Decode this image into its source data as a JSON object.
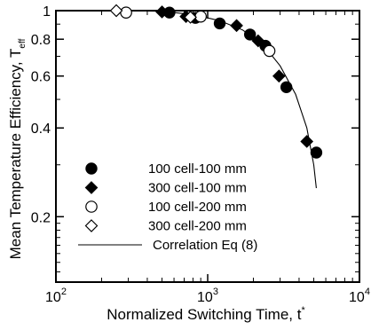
{
  "chart_data": {
    "type": "scatter",
    "xlabel": "Normalized Switching Time, t",
    "xlabel_superscript": "*",
    "ylabel": "Mean Temperature Efficiency, T",
    "ylabel_subscript": "eff",
    "x_scale": "log",
    "y_scale": "log",
    "xlim": [
      100,
      10000
    ],
    "ylim": [
      0.12,
      1.0
    ],
    "x_ticks": [
      {
        "value": 100,
        "base": "10",
        "exp": "2"
      },
      {
        "value": 1000,
        "base": "10",
        "exp": "3"
      },
      {
        "value": 10000,
        "base": "10",
        "exp": "4"
      }
    ],
    "y_ticks": [
      {
        "value": 1.0,
        "label": "1"
      },
      {
        "value": 0.8,
        "label": "0.8"
      },
      {
        "value": 0.6,
        "label": "0.6"
      },
      {
        "value": 0.4,
        "label": "0.4"
      },
      {
        "value": 0.2,
        "label": "0.2"
      }
    ],
    "grid": false,
    "legend_position": "bottom-left",
    "series": [
      {
        "name": "100 cell-100 mm",
        "marker": "filled-circle",
        "points": [
          [
            560,
            0.985
          ],
          [
            830,
            0.945
          ],
          [
            1200,
            0.905
          ],
          [
            1900,
            0.83
          ],
          [
            2400,
            0.76
          ],
          [
            3300,
            0.55
          ],
          [
            5200,
            0.33
          ]
        ]
      },
      {
        "name": "300 cell-100 mm",
        "marker": "filled-diamond",
        "points": [
          [
            500,
            0.99
          ],
          [
            720,
            0.955
          ],
          [
            1550,
            0.89
          ],
          [
            2150,
            0.79
          ],
          [
            2950,
            0.6
          ],
          [
            4500,
            0.36
          ]
        ]
      },
      {
        "name": "100 cell-200 mm",
        "marker": "open-circle",
        "points": [
          [
            290,
            0.985
          ],
          [
            900,
            0.955
          ],
          [
            2550,
            0.73
          ]
        ]
      },
      {
        "name": "300 cell-200 mm",
        "marker": "open-diamond",
        "points": [
          [
            250,
            1.0
          ],
          [
            770,
            0.95
          ]
        ]
      },
      {
        "name": "Correlation Eq  (8)",
        "marker": "line",
        "points": [
          [
            250,
            1.0
          ],
          [
            500,
            0.995
          ],
          [
            800,
            0.97
          ],
          [
            1200,
            0.925
          ],
          [
            1700,
            0.86
          ],
          [
            2300,
            0.77
          ],
          [
            3000,
            0.65
          ],
          [
            3800,
            0.52
          ],
          [
            4500,
            0.4
          ],
          [
            5000,
            0.3
          ],
          [
            5200,
            0.25
          ]
        ]
      }
    ]
  }
}
